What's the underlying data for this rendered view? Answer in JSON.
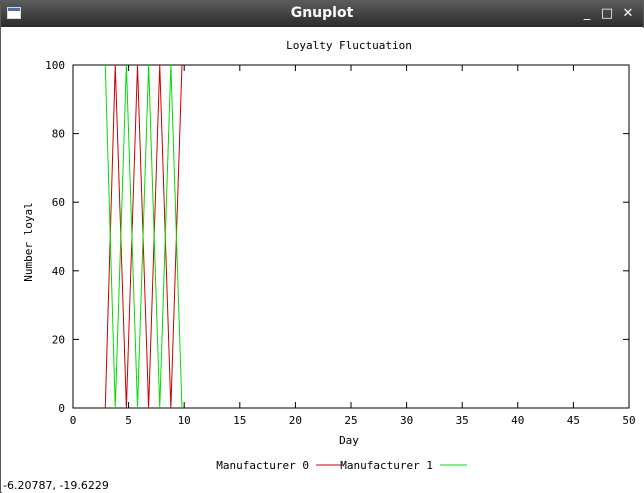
{
  "window": {
    "title": "Gnuplot",
    "minimize_glyph": "_",
    "maximize_glyph": "□",
    "close_glyph": "✕"
  },
  "status": {
    "coordinates": "-6.20787, -19.6229"
  },
  "chart_data": {
    "type": "line",
    "title": "Loyalty Fluctuation",
    "xlabel": "Day",
    "ylabel": "Number loyal",
    "xlim": [
      0,
      50
    ],
    "ylim": [
      0,
      100
    ],
    "xticks": [
      0,
      5,
      10,
      15,
      20,
      25,
      30,
      35,
      40,
      45,
      50
    ],
    "yticks": [
      0,
      20,
      40,
      60,
      80,
      100
    ],
    "grid": false,
    "legend": "bottom-center",
    "series": [
      {
        "name": "Manufacturer 0",
        "color": "#cc0000",
        "x": [
          2.9,
          3.8,
          4.8,
          5.8,
          6.8,
          7.8,
          8.8,
          9.8
        ],
        "y": [
          0,
          100,
          0,
          100,
          0,
          100,
          0,
          100
        ]
      },
      {
        "name": "Manufacturer 1",
        "color": "#00dd00",
        "x": [
          2.9,
          3.8,
          4.8,
          5.8,
          6.8,
          7.8,
          8.8,
          9.8
        ],
        "y": [
          100,
          0,
          100,
          0,
          100,
          0,
          100,
          0
        ]
      }
    ]
  }
}
